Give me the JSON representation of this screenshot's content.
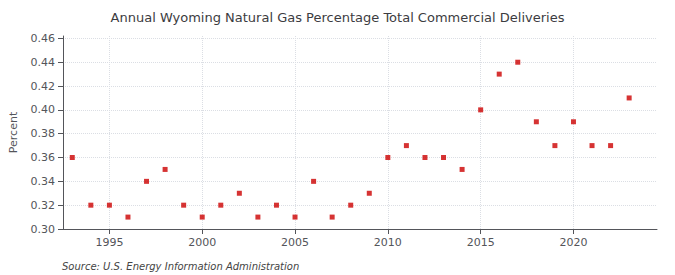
{
  "chart_data": {
    "type": "scatter",
    "title": "Annual Wyoming Natural Gas Percentage Total Commercial Deliveries",
    "ylabel": "Percent",
    "annotation": "Source: U.S. Energy Information Administration",
    "x": [
      1993,
      1994,
      1995,
      1996,
      1997,
      1998,
      1999,
      2000,
      2001,
      2002,
      2003,
      2004,
      2005,
      2006,
      2007,
      2008,
      2009,
      2010,
      2011,
      2012,
      2013,
      2014,
      2015,
      2016,
      2017,
      2018,
      2019,
      2020,
      2021,
      2022,
      2023
    ],
    "values": [
      0.36,
      0.32,
      0.32,
      0.31,
      0.34,
      0.35,
      0.32,
      0.31,
      0.32,
      0.33,
      0.31,
      0.32,
      0.31,
      0.34,
      0.31,
      0.32,
      0.33,
      0.36,
      0.37,
      0.36,
      0.36,
      0.35,
      0.4,
      0.43,
      0.44,
      0.39,
      0.37,
      0.39,
      0.37,
      0.37,
      0.41
    ],
    "color": "#cc0000",
    "marker": "square",
    "xlim": [
      1992.5,
      2024.5
    ],
    "xticks": [
      1995,
      2000,
      2005,
      2010,
      2015,
      2020
    ],
    "ylim": [
      0.3,
      0.462
    ],
    "yticks": [
      {
        "value": 0.3,
        "label": "0.30"
      },
      0.32,
      0.34,
      0.36,
      0.38,
      {
        "value": 0.4,
        "label": "0.40"
      },
      0.42,
      0.44,
      0.46
    ],
    "grid": true
  }
}
